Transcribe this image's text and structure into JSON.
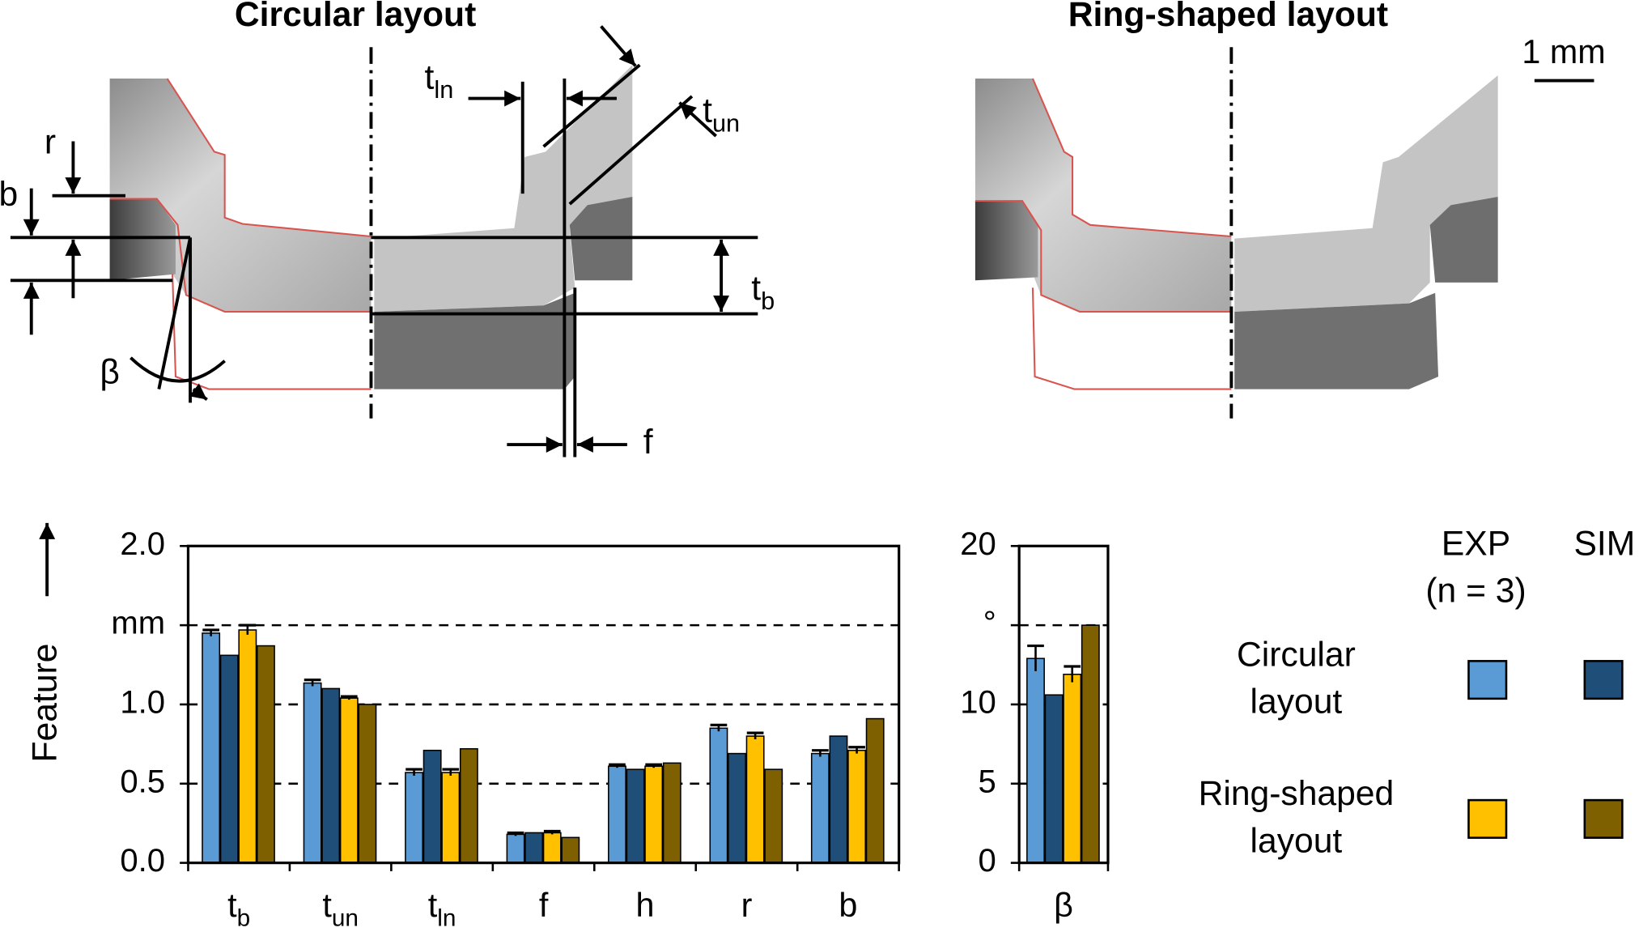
{
  "figure": {
    "panels": [
      {
        "title": "Circular layout"
      },
      {
        "title": "Ring-shaped layout"
      }
    ],
    "scale_bar": "1 mm",
    "labels": [
      [
        "r"
      ],
      [
        "b"
      ],
      [
        "β"
      ],
      [
        "t",
        "ln"
      ],
      [
        "t",
        "un"
      ],
      [
        "t",
        "b"
      ],
      [
        "f"
      ]
    ]
  },
  "chart_data": [
    {
      "type": "bar",
      "y_label": "Feature",
      "categories": [
        [
          "t",
          "b"
        ],
        [
          "t",
          "un"
        ],
        [
          "t",
          "ln"
        ],
        [
          "f"
        ],
        [
          "h"
        ],
        [
          "r"
        ],
        [
          "b"
        ]
      ],
      "series": [
        {
          "color": "#5b9bd5",
          "values": [
            1.45,
            1.135,
            0.57,
            0.18,
            0.61,
            0.85,
            0.69
          ],
          "errors": [
            0.02,
            0.02,
            0.02,
            0.01,
            0.01,
            0.02,
            0.02
          ]
        },
        {
          "color": "#1f4e79",
          "values": [
            1.31,
            1.1,
            0.71,
            0.19,
            0.59,
            0.69,
            0.8
          ]
        },
        {
          "color": "#ffc000",
          "values": [
            1.47,
            1.04,
            0.57,
            0.19,
            0.61,
            0.8,
            0.71
          ],
          "errors": [
            0.03,
            0.01,
            0.02,
            0.01,
            0.01,
            0.02,
            0.02
          ]
        },
        {
          "color": "#7f6000",
          "values": [
            1.37,
            1.0,
            0.72,
            0.16,
            0.63,
            0.59,
            0.91
          ]
        }
      ],
      "ylim": [
        0,
        2
      ],
      "yticks": [
        {
          "value": 0,
          "label": "0.0"
        },
        0.5,
        {
          "value": 1,
          "label": "1.0"
        },
        {
          "value": 1.5,
          "label": "mm"
        },
        {
          "value": 2,
          "label": "2.0"
        }
      ],
      "grid": true
    },
    {
      "type": "bar",
      "categories": [
        [
          "β"
        ]
      ],
      "series": [
        {
          "color": "#5b9bd5",
          "values": [
            12.9
          ],
          "errors": [
            0.8
          ]
        },
        {
          "color": "#1f4e79",
          "values": [
            10.6
          ]
        },
        {
          "color": "#ffc000",
          "values": [
            11.9
          ],
          "errors": [
            0.5
          ]
        },
        {
          "color": "#7f6000",
          "values": [
            15.0
          ]
        }
      ],
      "ylim": [
        0,
        20
      ],
      "yticks": [
        0,
        5,
        10,
        {
          "value": 15,
          "label": "°"
        },
        20
      ],
      "grid": true
    }
  ],
  "legend": {
    "columns": [
      [
        "EXP",
        "(n = 3)"
      ],
      [
        "SIM"
      ]
    ],
    "rows": [
      [
        "Circular",
        "layout"
      ],
      [
        "Ring-shaped",
        "layout"
      ]
    ]
  }
}
